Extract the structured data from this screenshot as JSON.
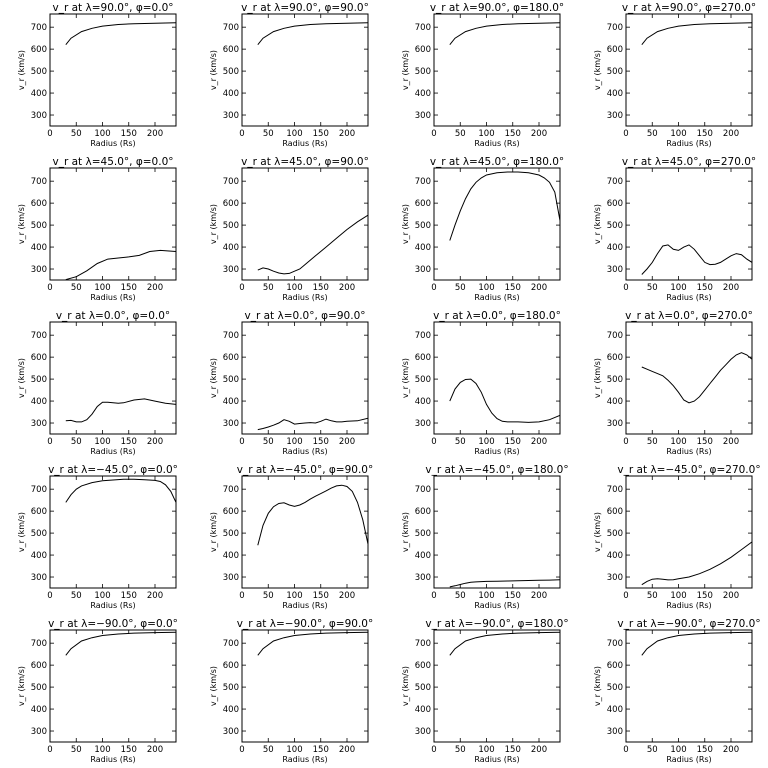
{
  "chart_data": [
    {
      "type": "line",
      "title": "v_r at λ=90.0°, φ=0.0°",
      "xlabel": "Radius (Rs)",
      "ylabel": "v_r (km/s)",
      "xlim": [
        0,
        240
      ],
      "ylim": [
        250,
        760
      ],
      "xticks": [
        0,
        50,
        100,
        150,
        200
      ],
      "yticks": [
        300,
        400,
        500,
        600,
        700
      ],
      "series": [
        {
          "x": [
            30,
            40,
            60,
            80,
            100,
            130,
            160,
            200,
            240
          ],
          "y": [
            620,
            650,
            680,
            695,
            705,
            712,
            716,
            718,
            720
          ]
        }
      ]
    },
    {
      "type": "line",
      "title": "v_r at λ=90.0°, φ=90.0°",
      "xlabel": "Radius (Rs)",
      "ylabel": "v_r (km/s)",
      "xlim": [
        0,
        240
      ],
      "ylim": [
        250,
        760
      ],
      "xticks": [
        0,
        50,
        100,
        150,
        200
      ],
      "yticks": [
        300,
        400,
        500,
        600,
        700
      ],
      "series": [
        {
          "x": [
            30,
            40,
            60,
            80,
            100,
            130,
            160,
            200,
            240
          ],
          "y": [
            620,
            650,
            680,
            695,
            705,
            712,
            716,
            718,
            720
          ]
        }
      ]
    },
    {
      "type": "line",
      "title": "v_r at λ=90.0°, φ=180.0°",
      "xlabel": "Radius (Rs)",
      "ylabel": "v_r (km/s)",
      "xlim": [
        0,
        240
      ],
      "ylim": [
        250,
        760
      ],
      "xticks": [
        0,
        50,
        100,
        150,
        200
      ],
      "yticks": [
        300,
        400,
        500,
        600,
        700
      ],
      "series": [
        {
          "x": [
            30,
            40,
            60,
            80,
            100,
            130,
            160,
            200,
            240
          ],
          "y": [
            620,
            650,
            680,
            695,
            705,
            712,
            716,
            718,
            720
          ]
        }
      ]
    },
    {
      "type": "line",
      "title": "v_r at λ=90.0°, φ=270.0°",
      "xlabel": "Radius (Rs)",
      "ylabel": "v_r (km/s)",
      "xlim": [
        0,
        240
      ],
      "ylim": [
        250,
        760
      ],
      "xticks": [
        0,
        50,
        100,
        150,
        200
      ],
      "yticks": [
        300,
        400,
        500,
        600,
        700
      ],
      "series": [
        {
          "x": [
            30,
            40,
            60,
            80,
            100,
            130,
            160,
            200,
            240
          ],
          "y": [
            620,
            650,
            680,
            695,
            705,
            712,
            716,
            718,
            720
          ]
        }
      ]
    },
    {
      "type": "line",
      "title": "v_r at λ=45.0°, φ=0.0°",
      "xlabel": "Radius (Rs)",
      "ylabel": "v_r (km/s)",
      "xlim": [
        0,
        240
      ],
      "ylim": [
        250,
        760
      ],
      "xticks": [
        0,
        50,
        100,
        150,
        200
      ],
      "yticks": [
        300,
        400,
        500,
        600,
        700
      ],
      "series": [
        {
          "x": [
            30,
            50,
            70,
            90,
            110,
            130,
            150,
            170,
            190,
            210,
            240
          ],
          "y": [
            252,
            265,
            292,
            325,
            345,
            350,
            355,
            362,
            380,
            385,
            380
          ]
        }
      ]
    },
    {
      "type": "line",
      "title": "v_r at λ=45.0°, φ=90.0°",
      "xlabel": "Radius (Rs)",
      "ylabel": "v_r (km/s)",
      "xlim": [
        0,
        240
      ],
      "ylim": [
        250,
        760
      ],
      "xticks": [
        0,
        50,
        100,
        150,
        200
      ],
      "yticks": [
        300,
        400,
        500,
        600,
        700
      ],
      "series": [
        {
          "x": [
            30,
            40,
            50,
            60,
            70,
            80,
            90,
            100,
            110,
            120,
            140,
            160,
            180,
            200,
            220,
            240
          ],
          "y": [
            295,
            305,
            300,
            290,
            282,
            278,
            280,
            290,
            300,
            320,
            360,
            400,
            440,
            480,
            515,
            545
          ]
        }
      ]
    },
    {
      "type": "line",
      "title": "v_r at λ=45.0°, φ=180.0°",
      "xlabel": "Radius (Rs)",
      "ylabel": "v_r (km/s)",
      "xlim": [
        0,
        240
      ],
      "ylim": [
        250,
        760
      ],
      "xticks": [
        0,
        50,
        100,
        150,
        200
      ],
      "yticks": [
        300,
        400,
        500,
        600,
        700
      ],
      "series": [
        {
          "x": [
            30,
            40,
            50,
            60,
            70,
            80,
            90,
            100,
            120,
            140,
            160,
            180,
            200,
            210,
            220,
            230,
            240
          ],
          "y": [
            430,
            500,
            565,
            620,
            665,
            695,
            715,
            728,
            738,
            742,
            742,
            738,
            728,
            715,
            695,
            650,
            520
          ]
        }
      ]
    },
    {
      "type": "line",
      "title": "v_r at λ=45.0°, φ=270.0°",
      "xlabel": "Radius (Rs)",
      "ylabel": "v_r (km/s)",
      "xlim": [
        0,
        240
      ],
      "ylim": [
        250,
        760
      ],
      "xticks": [
        0,
        50,
        100,
        150,
        200
      ],
      "yticks": [
        300,
        400,
        500,
        600,
        700
      ],
      "series": [
        {
          "x": [
            30,
            40,
            50,
            60,
            70,
            80,
            90,
            100,
            110,
            120,
            130,
            140,
            150,
            160,
            170,
            180,
            190,
            200,
            210,
            220,
            230,
            240
          ],
          "y": [
            275,
            300,
            330,
            370,
            405,
            410,
            390,
            385,
            400,
            410,
            390,
            360,
            330,
            320,
            322,
            330,
            345,
            360,
            370,
            365,
            345,
            330
          ]
        }
      ]
    },
    {
      "type": "line",
      "title": "v_r at λ=0.0°, φ=0.0°",
      "xlabel": "Radius (Rs)",
      "ylabel": "v_r (km/s)",
      "xlim": [
        0,
        240
      ],
      "ylim": [
        250,
        760
      ],
      "xticks": [
        0,
        50,
        100,
        150,
        200
      ],
      "yticks": [
        300,
        400,
        500,
        600,
        700
      ],
      "series": [
        {
          "x": [
            30,
            40,
            50,
            60,
            70,
            80,
            90,
            100,
            110,
            120,
            130,
            140,
            160,
            180,
            200,
            220,
            240
          ],
          "y": [
            310,
            312,
            305,
            305,
            315,
            340,
            375,
            395,
            395,
            392,
            390,
            392,
            405,
            410,
            400,
            390,
            385
          ]
        }
      ]
    },
    {
      "type": "line",
      "title": "v_r at λ=0.0°, φ=90.0°",
      "xlabel": "Radius (Rs)",
      "ylabel": "v_r (km/s)",
      "xlim": [
        0,
        240
      ],
      "ylim": [
        250,
        760
      ],
      "xticks": [
        0,
        50,
        100,
        150,
        200
      ],
      "yticks": [
        300,
        400,
        500,
        600,
        700
      ],
      "series": [
        {
          "x": [
            30,
            40,
            50,
            60,
            70,
            80,
            90,
            100,
            110,
            120,
            130,
            140,
            150,
            160,
            170,
            180,
            190,
            200,
            220,
            240
          ],
          "y": [
            270,
            275,
            282,
            290,
            300,
            315,
            308,
            295,
            298,
            300,
            302,
            300,
            308,
            318,
            310,
            305,
            305,
            308,
            310,
            322
          ]
        }
      ]
    },
    {
      "type": "line",
      "title": "v_r at λ=0.0°, φ=180.0°",
      "xlabel": "Radius (Rs)",
      "ylabel": "v_r (km/s)",
      "xlim": [
        0,
        240
      ],
      "ylim": [
        250,
        760
      ],
      "xticks": [
        0,
        50,
        100,
        150,
        200
      ],
      "yticks": [
        300,
        400,
        500,
        600,
        700
      ],
      "series": [
        {
          "x": [
            30,
            40,
            50,
            60,
            70,
            80,
            90,
            100,
            110,
            120,
            130,
            140,
            160,
            180,
            200,
            220,
            240
          ],
          "y": [
            400,
            455,
            485,
            498,
            500,
            480,
            440,
            385,
            345,
            320,
            308,
            305,
            305,
            303,
            305,
            315,
            335
          ]
        }
      ]
    },
    {
      "type": "line",
      "title": "v_r at λ=0.0°, φ=270.0°",
      "xlabel": "Radius (Rs)",
      "ylabel": "v_r (km/s)",
      "xlim": [
        0,
        240
      ],
      "ylim": [
        250,
        760
      ],
      "xticks": [
        0,
        50,
        100,
        150,
        200
      ],
      "yticks": [
        300,
        400,
        500,
        600,
        700
      ],
      "series": [
        {
          "x": [
            30,
            40,
            50,
            60,
            70,
            80,
            90,
            100,
            110,
            120,
            130,
            140,
            150,
            160,
            170,
            180,
            190,
            200,
            210,
            220,
            230,
            240
          ],
          "y": [
            555,
            545,
            535,
            525,
            515,
            495,
            470,
            440,
            405,
            392,
            400,
            420,
            450,
            480,
            510,
            540,
            565,
            590,
            610,
            620,
            610,
            590
          ]
        }
      ]
    },
    {
      "type": "line",
      "title": "v_r at λ=−45.0°, φ=0.0°",
      "xlabel": "Radius (Rs)",
      "ylabel": "v_r (km/s)",
      "xlim": [
        0,
        240
      ],
      "ylim": [
        250,
        760
      ],
      "xticks": [
        0,
        50,
        100,
        150,
        200
      ],
      "yticks": [
        300,
        400,
        500,
        600,
        700
      ],
      "series": [
        {
          "x": [
            30,
            40,
            50,
            60,
            80,
            100,
            120,
            140,
            160,
            180,
            200,
            210,
            220,
            230,
            240
          ],
          "y": [
            640,
            675,
            700,
            715,
            730,
            738,
            742,
            745,
            745,
            743,
            740,
            735,
            720,
            690,
            640
          ]
        }
      ]
    },
    {
      "type": "line",
      "title": "v_r at λ=−45.0°, φ=90.0°",
      "xlabel": "Radius (Rs)",
      "ylabel": "v_r (km/s)",
      "xlim": [
        0,
        240
      ],
      "ylim": [
        250,
        760
      ],
      "xticks": [
        0,
        50,
        100,
        150,
        200
      ],
      "yticks": [
        300,
        400,
        500,
        600,
        700
      ],
      "series": [
        {
          "x": [
            30,
            40,
            50,
            60,
            70,
            80,
            90,
            100,
            110,
            120,
            130,
            140,
            150,
            160,
            170,
            180,
            190,
            200,
            210,
            220,
            230,
            240
          ],
          "y": [
            445,
            535,
            590,
            620,
            635,
            638,
            628,
            622,
            628,
            640,
            655,
            668,
            680,
            692,
            705,
            715,
            718,
            712,
            690,
            640,
            560,
            450
          ]
        }
      ]
    },
    {
      "type": "line",
      "title": "v_r at λ=−45.0°, φ=180.0°",
      "xlabel": "Radius (Rs)",
      "ylabel": "v_r (km/s)",
      "xlim": [
        0,
        240
      ],
      "ylim": [
        250,
        760
      ],
      "xticks": [
        0,
        50,
        100,
        150,
        200
      ],
      "yticks": [
        300,
        400,
        500,
        600,
        700
      ],
      "series": [
        {
          "x": [
            30,
            40,
            50,
            60,
            70,
            80,
            100,
            120,
            140,
            160,
            180,
            200,
            220,
            240
          ],
          "y": [
            255,
            260,
            266,
            272,
            276,
            278,
            280,
            281,
            282,
            283,
            284,
            285,
            286,
            288
          ]
        }
      ]
    },
    {
      "type": "line",
      "title": "v_r at λ=−45.0°, φ=270.0°",
      "xlabel": "Radius (Rs)",
      "ylabel": "v_r (km/s)",
      "xlim": [
        0,
        240
      ],
      "ylim": [
        250,
        760
      ],
      "xticks": [
        0,
        50,
        100,
        150,
        200
      ],
      "yticks": [
        300,
        400,
        500,
        600,
        700
      ],
      "series": [
        {
          "x": [
            30,
            40,
            50,
            60,
            70,
            80,
            90,
            100,
            120,
            140,
            160,
            180,
            200,
            220,
            240
          ],
          "y": [
            265,
            280,
            290,
            292,
            290,
            287,
            288,
            292,
            300,
            315,
            335,
            360,
            390,
            425,
            460
          ]
        }
      ]
    },
    {
      "type": "line",
      "title": "v_r at λ=−90.0°, φ=0.0°",
      "xlabel": "Radius (Rs)",
      "ylabel": "v_r (km/s)",
      "xlim": [
        0,
        240
      ],
      "ylim": [
        250,
        760
      ],
      "xticks": [
        0,
        50,
        100,
        150,
        200
      ],
      "yticks": [
        300,
        400,
        500,
        600,
        700
      ],
      "series": [
        {
          "x": [
            30,
            40,
            60,
            80,
            100,
            130,
            160,
            200,
            240
          ],
          "y": [
            645,
            675,
            710,
            725,
            735,
            742,
            746,
            748,
            750
          ]
        }
      ]
    },
    {
      "type": "line",
      "title": "v_r at λ=−90.0°, φ=90.0°",
      "xlabel": "Radius (Rs)",
      "ylabel": "v_r (km/s)",
      "xlim": [
        0,
        240
      ],
      "ylim": [
        250,
        760
      ],
      "xticks": [
        0,
        50,
        100,
        150,
        200
      ],
      "yticks": [
        300,
        400,
        500,
        600,
        700
      ],
      "series": [
        {
          "x": [
            30,
            40,
            60,
            80,
            100,
            130,
            160,
            200,
            240
          ],
          "y": [
            645,
            675,
            710,
            725,
            735,
            742,
            746,
            748,
            750
          ]
        }
      ]
    },
    {
      "type": "line",
      "title": "v_r at λ=−90.0°, φ=180.0°",
      "xlabel": "Radius (Rs)",
      "ylabel": "v_r (km/s)",
      "xlim": [
        0,
        240
      ],
      "ylim": [
        250,
        760
      ],
      "xticks": [
        0,
        50,
        100,
        150,
        200
      ],
      "yticks": [
        300,
        400,
        500,
        600,
        700
      ],
      "series": [
        {
          "x": [
            30,
            40,
            60,
            80,
            100,
            130,
            160,
            200,
            240
          ],
          "y": [
            645,
            675,
            710,
            725,
            735,
            742,
            746,
            748,
            750
          ]
        }
      ]
    },
    {
      "type": "line",
      "title": "v_r at λ=−90.0°, φ=270.0°",
      "xlabel": "Radius (Rs)",
      "ylabel": "v_r (km/s)",
      "xlim": [
        0,
        240
      ],
      "ylim": [
        250,
        760
      ],
      "xticks": [
        0,
        50,
        100,
        150,
        200
      ],
      "yticks": [
        300,
        400,
        500,
        600,
        700
      ],
      "series": [
        {
          "x": [
            30,
            40,
            60,
            80,
            100,
            130,
            160,
            200,
            240
          ],
          "y": [
            645,
            675,
            710,
            725,
            735,
            742,
            746,
            748,
            750
          ]
        }
      ]
    }
  ]
}
